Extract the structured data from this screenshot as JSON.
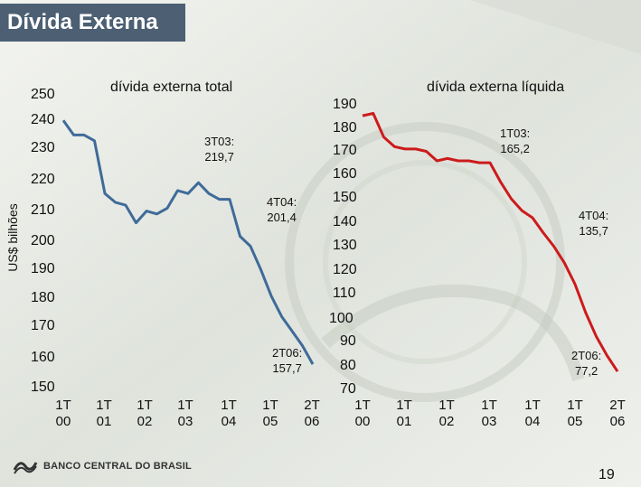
{
  "slide": {
    "title": "Dívida Externa",
    "page_number": "19",
    "logo_text": "BANCO CENTRAL DO BRASIL"
  },
  "colors": {
    "title_bar": "#4c5f73",
    "left_line": "#3f6b99",
    "right_line": "#cc1b1b"
  },
  "chart_data": [
    {
      "type": "line",
      "title": "dívida externa total",
      "ylabel": "US$ bilhões",
      "ylim": [
        150,
        250
      ],
      "yticks": [
        "250",
        "240",
        "230",
        "220",
        "210",
        "200",
        "190",
        "180",
        "170",
        "160",
        "150"
      ],
      "categories": [
        {
          "top": "1T",
          "bottom": "00"
        },
        {
          "top": "1T",
          "bottom": "01"
        },
        {
          "top": "1T",
          "bottom": "02"
        },
        {
          "top": "1T",
          "bottom": "03"
        },
        {
          "top": "1T",
          "bottom": "04"
        },
        {
          "top": "1T",
          "bottom": "05"
        },
        {
          "top": "2T",
          "bottom": "06"
        }
      ],
      "series": [
        {
          "name": "dívida externa total",
          "x": [
            0,
            0.25,
            0.5,
            0.75,
            1,
            1.25,
            1.5,
            1.75,
            2,
            2.25,
            2.5,
            2.75,
            3,
            3.25,
            3.5,
            3.75,
            4,
            4.25,
            4.5,
            4.75,
            5,
            5.25,
            5.5,
            5.75,
            6
          ],
          "values": [
            241,
            236,
            236,
            234,
            216,
            213,
            212,
            206,
            210,
            209,
            211,
            217,
            216,
            219.7,
            216,
            214,
            214,
            201.4,
            198,
            190,
            181,
            174,
            169,
            164,
            157.7
          ]
        }
      ],
      "annotations": [
        {
          "line1": "3T03:",
          "line2": "219,7"
        },
        {
          "line1": "4T04:",
          "line2": "201,4"
        },
        {
          "line1": "2T06:",
          "line2": "157,7"
        }
      ]
    },
    {
      "type": "line",
      "title": "dívida externa líquida",
      "ylim": [
        70,
        190
      ],
      "yticks": [
        "190",
        "180",
        "170",
        "160",
        "150",
        "140",
        "130",
        "120",
        "110",
        "100",
        "90",
        "80",
        "70"
      ],
      "categories": [
        {
          "top": "1T",
          "bottom": "00"
        },
        {
          "top": "1T",
          "bottom": "01"
        },
        {
          "top": "1T",
          "bottom": "02"
        },
        {
          "top": "1T",
          "bottom": "03"
        },
        {
          "top": "1T",
          "bottom": "04"
        },
        {
          "top": "1T",
          "bottom": "05"
        },
        {
          "top": "2T",
          "bottom": "06"
        }
      ],
      "series": [
        {
          "name": "dívida externa líquida",
          "x": [
            0,
            0.25,
            0.5,
            0.75,
            1,
            1.25,
            1.5,
            1.75,
            2,
            2.25,
            2.5,
            2.75,
            3,
            3.25,
            3.5,
            3.75,
            4,
            4.25,
            4.5,
            4.75,
            5,
            5.25,
            5.5,
            5.75,
            6
          ],
          "values": [
            185,
            186,
            176,
            172,
            171,
            171,
            170,
            166,
            167,
            166,
            166,
            165.2,
            165.2,
            157,
            150,
            145,
            142,
            135.7,
            130,
            123,
            114,
            102,
            92,
            84,
            77.2
          ]
        }
      ],
      "annotations": [
        {
          "line1": "1T03:",
          "line2": "165,2"
        },
        {
          "line1": "4T04:",
          "line2": "135,7"
        },
        {
          "line1": "2T06:",
          "line2": "77,2"
        }
      ]
    }
  ]
}
